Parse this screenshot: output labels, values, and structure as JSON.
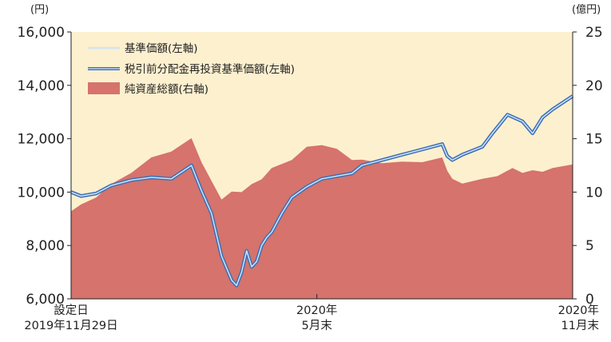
{
  "chart_data": {
    "type": "line+area",
    "left_unit": "(円)",
    "right_unit": "(億円)",
    "left_axis": {
      "ylim": [
        6000,
        16000
      ],
      "ticks": [
        "6,000",
        "8,000",
        "10,000",
        "12,000",
        "14,000",
        "16,000"
      ],
      "values": [
        6000,
        8000,
        10000,
        12000,
        14000,
        16000
      ]
    },
    "right_axis": {
      "ylim": [
        0,
        25
      ],
      "ticks": [
        "0",
        "5",
        "10",
        "15",
        "20",
        "25"
      ],
      "values": [
        0,
        5,
        10,
        15,
        20,
        25
      ]
    },
    "x_labels": [
      {
        "lines": [
          "設定日",
          "2019年11月29日"
        ],
        "pos": 0.0
      },
      {
        "lines": [
          "2020年",
          "5月末"
        ],
        "pos": 0.49
      },
      {
        "lines": [
          "2020年",
          "11月末"
        ],
        "pos": 1.0
      }
    ],
    "grid": false,
    "legend_position": "top-left",
    "colors": {
      "background": "#fdf0cf",
      "area": "#d5736c",
      "nav": "#cfe4f5",
      "reinvested": "#3d6fb7"
    },
    "series": [
      {
        "name": "基準価額(左軸)",
        "axis": "left",
        "style": "thin-line",
        "x": [
          0,
          0.02,
          0.05,
          0.08,
          0.12,
          0.16,
          0.2,
          0.24,
          0.26,
          0.28,
          0.3,
          0.32,
          0.33,
          0.34,
          0.35,
          0.36,
          0.37,
          0.38,
          0.39,
          0.4,
          0.42,
          0.44,
          0.47,
          0.5,
          0.53,
          0.56,
          0.58,
          0.62,
          0.66,
          0.7,
          0.74,
          0.75,
          0.76,
          0.78,
          0.82,
          0.84,
          0.87,
          0.9,
          0.92,
          0.94,
          0.96,
          1.0
        ],
        "values": [
          10000,
          9850,
          9950,
          10250,
          10450,
          10550,
          10500,
          11000,
          10050,
          9200,
          7600,
          6700,
          6500,
          7000,
          7800,
          7200,
          7400,
          8000,
          8300,
          8500,
          9200,
          9800,
          10200,
          10500,
          10600,
          10700,
          11000,
          11200,
          11400,
          11600,
          11800,
          11350,
          11200,
          11400,
          11700,
          12200,
          12900,
          12650,
          12200,
          12800,
          13100,
          13600
        ]
      },
      {
        "name": "税引前分配金再投資基準価額(左軸)",
        "axis": "left",
        "style": "thick-line",
        "x": [
          0,
          0.02,
          0.05,
          0.08,
          0.12,
          0.16,
          0.2,
          0.24,
          0.26,
          0.28,
          0.3,
          0.32,
          0.33,
          0.34,
          0.35,
          0.36,
          0.37,
          0.38,
          0.39,
          0.4,
          0.42,
          0.44,
          0.47,
          0.5,
          0.53,
          0.56,
          0.58,
          0.62,
          0.66,
          0.7,
          0.74,
          0.75,
          0.76,
          0.78,
          0.82,
          0.84,
          0.87,
          0.9,
          0.92,
          0.94,
          0.96,
          1.0
        ],
        "values": [
          10000,
          9850,
          9950,
          10250,
          10450,
          10550,
          10500,
          11000,
          10050,
          9200,
          7600,
          6700,
          6500,
          7000,
          7800,
          7200,
          7400,
          8000,
          8300,
          8500,
          9200,
          9800,
          10200,
          10500,
          10600,
          10700,
          11000,
          11200,
          11400,
          11600,
          11800,
          11350,
          11200,
          11400,
          11700,
          12200,
          12900,
          12650,
          12200,
          12800,
          13100,
          13600
        ]
      },
      {
        "name": "純資産総額(右軸)",
        "axis": "right",
        "style": "area",
        "x": [
          0,
          0.02,
          0.05,
          0.08,
          0.12,
          0.16,
          0.2,
          0.24,
          0.26,
          0.28,
          0.3,
          0.32,
          0.34,
          0.36,
          0.38,
          0.4,
          0.44,
          0.47,
          0.5,
          0.53,
          0.56,
          0.58,
          0.62,
          0.66,
          0.7,
          0.74,
          0.75,
          0.76,
          0.78,
          0.82,
          0.85,
          0.88,
          0.9,
          0.92,
          0.94,
          0.96,
          1.0
        ],
        "values": [
          8.2,
          8.6,
          9.5,
          10.5,
          11.8,
          13.0,
          13.8,
          14.8,
          12.8,
          10.8,
          9.3,
          9.8,
          10.0,
          10.5,
          11.2,
          12.0,
          13.0,
          14.0,
          14.4,
          13.8,
          13.0,
          12.8,
          12.7,
          12.6,
          12.8,
          13.0,
          12.0,
          11.0,
          10.8,
          11.0,
          11.5,
          12.0,
          11.8,
          11.8,
          11.9,
          12.0,
          12.6
        ]
      }
    ]
  }
}
